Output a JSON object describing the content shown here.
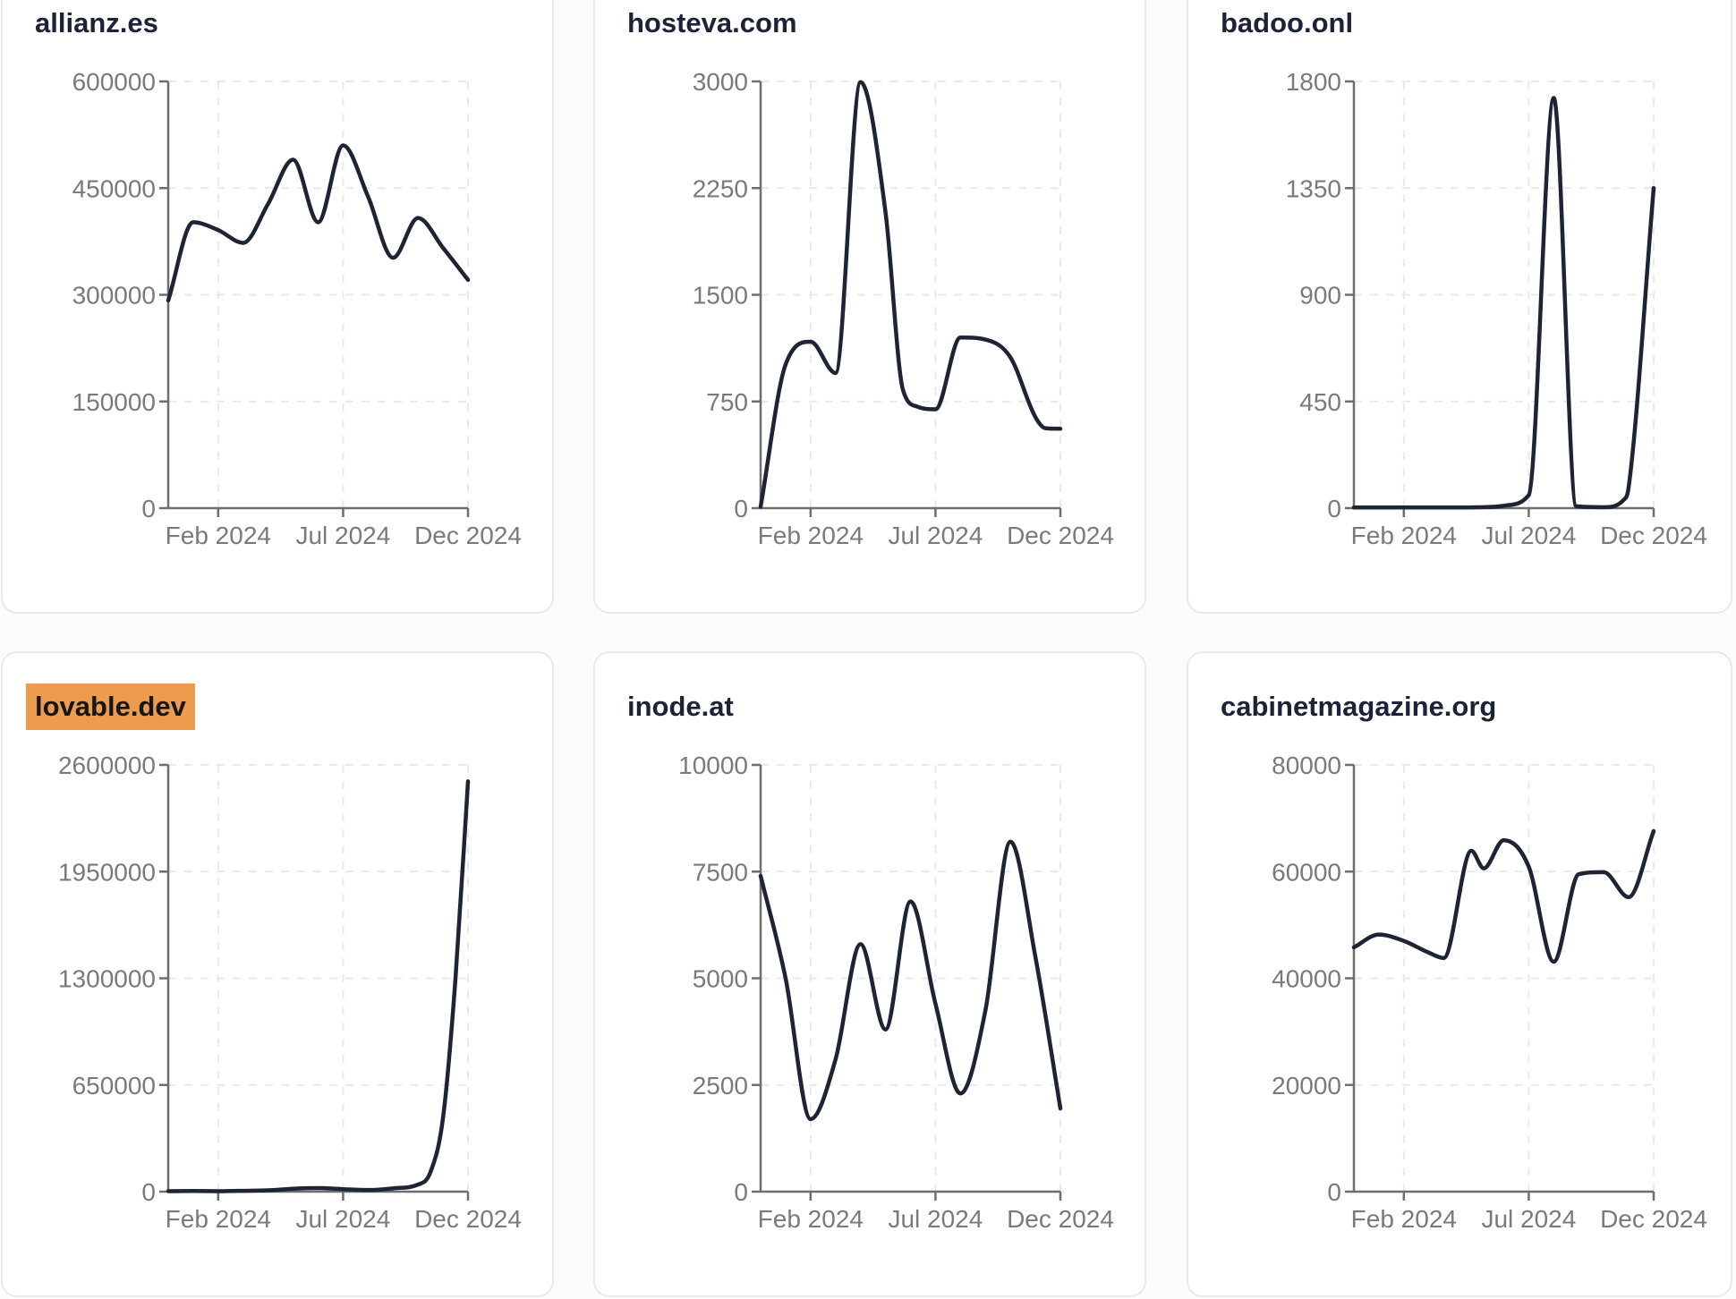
{
  "page": {
    "background_color": "#fcfcfd",
    "card_background": "#ffffff",
    "card_border_color": "#e9e9ec",
    "line_color": "#1d2433",
    "axis_color": "#6e6e6e",
    "tick_label_color": "#7a7a7a",
    "grid_color": "#e9e9e9",
    "title_color": "#1c2336",
    "highlight_color": "#ed9b4e",
    "highlight_text_color": "#161616"
  },
  "cards": [
    {
      "title": "allianz.es",
      "highlighted": false
    },
    {
      "title": "hosteva.com",
      "highlighted": false
    },
    {
      "title": "badoo.onl",
      "highlighted": false
    },
    {
      "title": "lovable.dev",
      "highlighted": true
    },
    {
      "title": "inode.at",
      "highlighted": false
    },
    {
      "title": "cabinetmagazine.org",
      "highlighted": false
    }
  ],
  "chart_data": [
    {
      "type": "line",
      "title": "allianz.es",
      "xlabel": "",
      "ylabel": "",
      "x_tick_labels": [
        "Feb 2024",
        "Jul 2024",
        "Dec 2024"
      ],
      "x_tick_months": [
        2,
        7,
        12
      ],
      "x_range_months": [
        0,
        12
      ],
      "ylim": [
        0,
        600000
      ],
      "yticks": [
        0,
        150000,
        300000,
        450000,
        600000
      ],
      "grid": true,
      "legend": "none",
      "points": [
        [
          0,
          292000
        ],
        [
          1,
          402000
        ],
        [
          2,
          391000
        ],
        [
          3,
          373000
        ],
        [
          4,
          428000
        ],
        [
          5,
          490000
        ],
        [
          6,
          402000
        ],
        [
          7,
          510000
        ],
        [
          8,
          438000
        ],
        [
          9,
          352000
        ],
        [
          10,
          408000
        ],
        [
          11,
          366000
        ],
        [
          12,
          321000
        ]
      ]
    },
    {
      "type": "line",
      "title": "hosteva.com",
      "xlabel": "",
      "ylabel": "",
      "x_tick_labels": [
        "Feb 2024",
        "Jul 2024",
        "Dec 2024"
      ],
      "x_tick_months": [
        2,
        7,
        12
      ],
      "x_range_months": [
        0,
        12
      ],
      "ylim": [
        0,
        3000
      ],
      "yticks": [
        0,
        750,
        1500,
        2250,
        3000
      ],
      "grid": true,
      "legend": "none",
      "points": [
        [
          0,
          10
        ],
        [
          1,
          1010
        ],
        [
          2,
          1170
        ],
        [
          3,
          950
        ],
        [
          4,
          2995
        ],
        [
          5,
          2080
        ],
        [
          5.7,
          830
        ],
        [
          6.3,
          712
        ],
        [
          7,
          695
        ],
        [
          8,
          1200
        ],
        [
          9,
          1185
        ],
        [
          10,
          1060
        ],
        [
          11,
          640
        ],
        [
          11.4,
          562
        ],
        [
          12,
          558
        ]
      ]
    },
    {
      "type": "line",
      "title": "badoo.onl",
      "xlabel": "",
      "ylabel": "",
      "x_tick_labels": [
        "Feb 2024",
        "Jul 2024",
        "Dec 2024"
      ],
      "x_tick_months": [
        2,
        7,
        12
      ],
      "x_range_months": [
        0,
        12
      ],
      "ylim": [
        0,
        1800
      ],
      "yticks": [
        0,
        450,
        900,
        1350,
        1800
      ],
      "grid": true,
      "legend": "none",
      "points": [
        [
          0,
          3
        ],
        [
          1,
          3
        ],
        [
          2,
          3
        ],
        [
          3,
          3
        ],
        [
          4,
          3
        ],
        [
          5,
          4
        ],
        [
          6,
          10
        ],
        [
          7,
          55
        ],
        [
          8,
          1730
        ],
        [
          8.9,
          8
        ],
        [
          10,
          4
        ],
        [
          10.8,
          35
        ],
        [
          11,
          90
        ],
        [
          12,
          1350
        ]
      ]
    },
    {
      "type": "line",
      "title": "lovable.dev",
      "xlabel": "",
      "ylabel": "",
      "x_tick_labels": [
        "Feb 2024",
        "Jul 2024",
        "Dec 2024"
      ],
      "x_tick_months": [
        2,
        7,
        12
      ],
      "x_range_months": [
        0,
        12
      ],
      "ylim": [
        0,
        2600000
      ],
      "yticks": [
        0,
        650000,
        1300000,
        1950000,
        2600000
      ],
      "grid": true,
      "legend": "none",
      "points": [
        [
          0,
          3000
        ],
        [
          1,
          4000
        ],
        [
          2,
          3000
        ],
        [
          3,
          5000
        ],
        [
          4,
          8000
        ],
        [
          5,
          18000
        ],
        [
          6,
          22000
        ],
        [
          7,
          15000
        ],
        [
          8,
          10000
        ],
        [
          9,
          20000
        ],
        [
          10,
          43000
        ],
        [
          10.5,
          120000
        ],
        [
          11,
          450000
        ],
        [
          11.5,
          1300000
        ],
        [
          12,
          2500000
        ]
      ]
    },
    {
      "type": "line",
      "title": "inode.at",
      "xlabel": "",
      "ylabel": "",
      "x_tick_labels": [
        "Feb 2024",
        "Jul 2024",
        "Dec 2024"
      ],
      "x_tick_months": [
        2,
        7,
        12
      ],
      "x_range_months": [
        0,
        12
      ],
      "ylim": [
        0,
        10000
      ],
      "yticks": [
        0,
        2500,
        5000,
        7500,
        10000
      ],
      "grid": true,
      "legend": "none",
      "points": [
        [
          0,
          7400
        ],
        [
          1,
          5000
        ],
        [
          2,
          1700
        ],
        [
          3,
          3100
        ],
        [
          4,
          5800
        ],
        [
          5,
          3800
        ],
        [
          6,
          6800
        ],
        [
          7,
          4400
        ],
        [
          8,
          2300
        ],
        [
          9,
          4250
        ],
        [
          10,
          8200
        ],
        [
          11,
          5500
        ],
        [
          12,
          1950
        ]
      ]
    },
    {
      "type": "line",
      "title": "cabinetmagazine.org",
      "xlabel": "",
      "ylabel": "",
      "x_tick_labels": [
        "Feb 2024",
        "Jul 2024",
        "Dec 2024"
      ],
      "x_tick_months": [
        2,
        7,
        12
      ],
      "x_range_months": [
        0,
        12
      ],
      "ylim": [
        0,
        80000
      ],
      "yticks": [
        0,
        20000,
        40000,
        60000,
        80000
      ],
      "grid": true,
      "legend": "none",
      "points": [
        [
          0,
          45800
        ],
        [
          1,
          48200
        ],
        [
          2,
          47000
        ],
        [
          3,
          44800
        ],
        [
          3.6,
          43800
        ],
        [
          4.7,
          63900
        ],
        [
          5.2,
          60600
        ],
        [
          6,
          65900
        ],
        [
          7,
          60900
        ],
        [
          8,
          43100
        ],
        [
          9,
          59500
        ],
        [
          10,
          59900
        ],
        [
          11,
          55200
        ],
        [
          12,
          67600
        ]
      ]
    }
  ]
}
